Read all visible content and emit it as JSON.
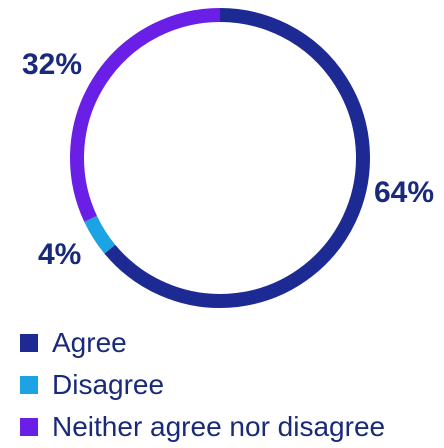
{
  "chart_data": {
    "type": "pie",
    "donut": true,
    "categories": [
      "Agree",
      "Disagree",
      "Neither agree nor disagree"
    ],
    "values": [
      64,
      4,
      32
    ],
    "value_labels": [
      "64%",
      "4%",
      "32%"
    ],
    "colors": [
      "#1e2a94",
      "#1ba3e3",
      "#6a1fe6"
    ],
    "label_color": "#1a2a7a",
    "legend": {
      "position": "bottom-left",
      "items": [
        {
          "label": "Agree",
          "color": "#1e2a94"
        },
        {
          "label": "Disagree",
          "color": "#1ba3e3"
        },
        {
          "label": "Neither agree nor disagree",
          "color": "#6a1fe6"
        }
      ]
    },
    "title": ""
  }
}
